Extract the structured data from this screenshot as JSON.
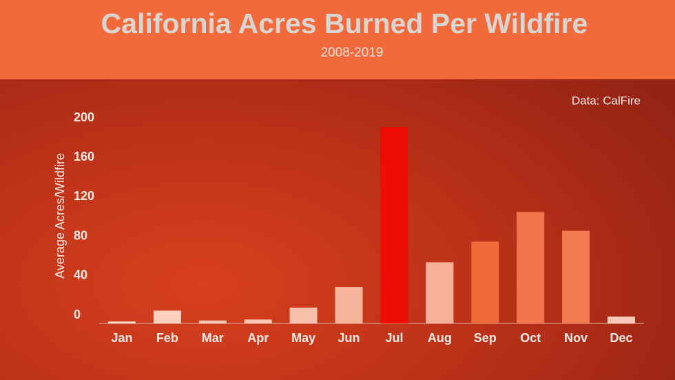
{
  "chart_data": {
    "type": "bar",
    "title": "California Acres Burned Per Wildfire",
    "subtitle": "2008-2019",
    "source": "Data: CalFire",
    "y_label": "Average Acres/Wildfire",
    "categories": [
      "Jan",
      "Feb",
      "Mar",
      "Apr",
      "May",
      "Jun",
      "Jul",
      "Aug",
      "Sep",
      "Oct",
      "Nov",
      "Dec"
    ],
    "values": [
      2,
      13,
      3,
      4,
      16,
      37,
      199,
      62,
      83,
      113,
      94,
      7
    ],
    "colors": [
      "#fbd9cc",
      "#fbd0be",
      "#fac8b5",
      "#fac6b3",
      "#f9c0ab",
      "#f7b49c",
      "#ee0c05",
      "#f7b098",
      "#f26a3c",
      "#f1744a",
      "#f17a50",
      "#f9c8b6"
    ],
    "ylim": [
      0,
      200
    ],
    "yticks": [
      0,
      40,
      80,
      120,
      160,
      200
    ],
    "grid": false
  }
}
